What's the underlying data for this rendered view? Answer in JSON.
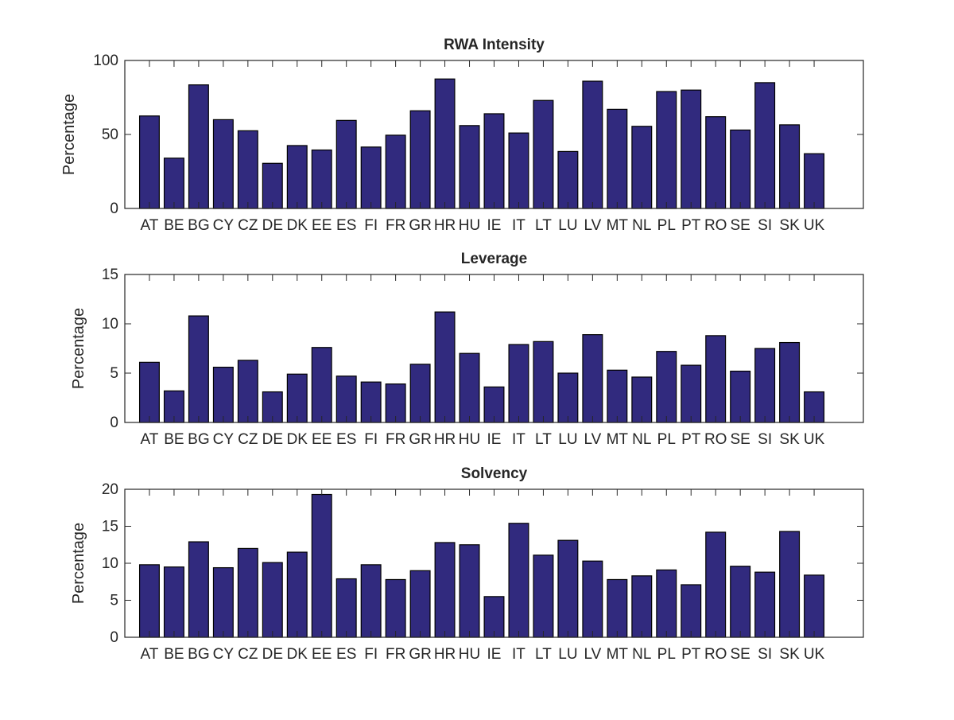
{
  "chart_data": [
    {
      "type": "bar",
      "title": "RWA Intensity",
      "xlabel": "",
      "ylabel": "Percentage",
      "ylim": [
        0,
        100
      ],
      "yticks": [
        0,
        50,
        100
      ],
      "bar_color": "#312a7e",
      "categories": [
        "AT",
        "BE",
        "BG",
        "CY",
        "CZ",
        "DE",
        "DK",
        "EE",
        "ES",
        "FI",
        "FR",
        "GR",
        "HR",
        "HU",
        "IE",
        "IT",
        "LT",
        "LU",
        "LV",
        "MT",
        "NL",
        "PL",
        "PT",
        "RO",
        "SE",
        "SI",
        "SK",
        "UK"
      ],
      "values": [
        62.5,
        34,
        83.5,
        60,
        52.5,
        30.5,
        42.5,
        39.5,
        59.5,
        41.5,
        49.5,
        66,
        87.5,
        56,
        64,
        51,
        73,
        38.5,
        86,
        67,
        55.5,
        79,
        80,
        62,
        53,
        85,
        56.5,
        37
      ]
    },
    {
      "type": "bar",
      "title": "Leverage",
      "xlabel": "",
      "ylabel": "Percentage",
      "ylim": [
        0,
        15
      ],
      "yticks": [
        0,
        5,
        10,
        15
      ],
      "bar_color": "#312a7e",
      "categories": [
        "AT",
        "BE",
        "BG",
        "CY",
        "CZ",
        "DE",
        "DK",
        "EE",
        "ES",
        "FI",
        "FR",
        "GR",
        "HR",
        "HU",
        "IE",
        "IT",
        "LT",
        "LU",
        "LV",
        "MT",
        "NL",
        "PL",
        "PT",
        "RO",
        "SE",
        "SI",
        "SK",
        "UK"
      ],
      "values": [
        6.1,
        3.2,
        10.8,
        5.6,
        6.3,
        3.1,
        4.9,
        7.6,
        4.7,
        4.1,
        3.9,
        5.9,
        11.2,
        7.0,
        3.6,
        7.9,
        8.2,
        5.0,
        8.9,
        5.3,
        4.6,
        7.2,
        5.8,
        8.8,
        5.2,
        7.5,
        8.1,
        3.1
      ]
    },
    {
      "type": "bar",
      "title": "Solvency",
      "xlabel": "",
      "ylabel": "Percentage",
      "ylim": [
        0,
        20
      ],
      "yticks": [
        0,
        5,
        10,
        15,
        20
      ],
      "bar_color": "#312a7e",
      "categories": [
        "AT",
        "BE",
        "BG",
        "CY",
        "CZ",
        "DE",
        "DK",
        "EE",
        "ES",
        "FI",
        "FR",
        "GR",
        "HR",
        "HU",
        "IE",
        "IT",
        "LT",
        "LU",
        "LV",
        "MT",
        "NL",
        "PL",
        "PT",
        "RO",
        "SE",
        "SI",
        "SK",
        "UK"
      ],
      "values": [
        9.8,
        9.5,
        12.9,
        9.4,
        12.0,
        10.1,
        11.5,
        19.3,
        7.9,
        9.8,
        7.8,
        9.0,
        12.8,
        12.5,
        5.5,
        15.4,
        11.1,
        13.1,
        10.3,
        7.8,
        8.3,
        9.1,
        7.1,
        14.2,
        9.6,
        8.8,
        14.3,
        8.4
      ]
    }
  ]
}
